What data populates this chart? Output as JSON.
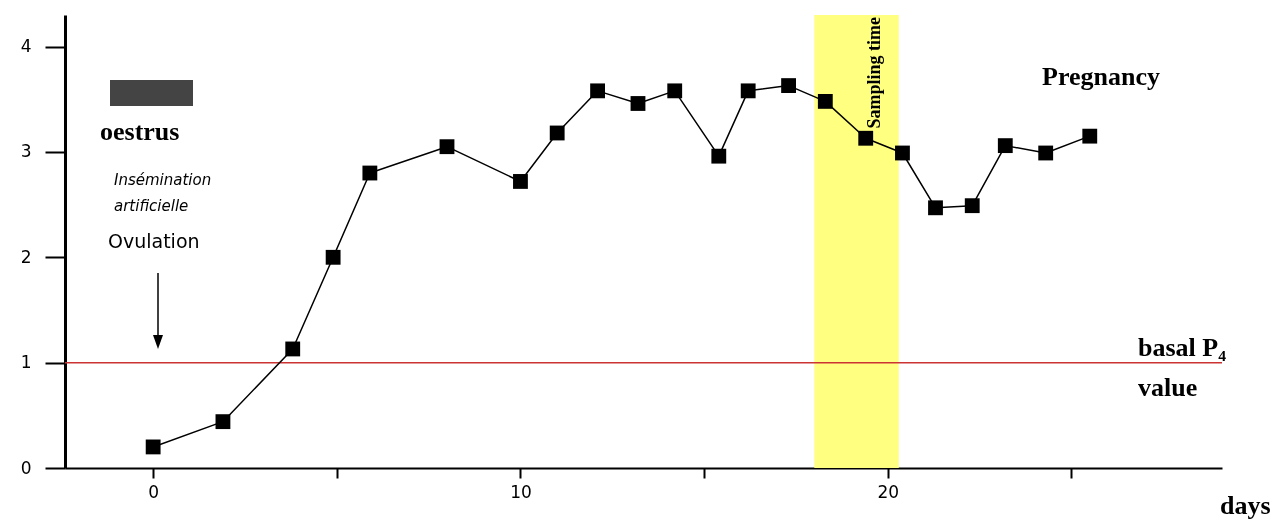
{
  "chart_data": {
    "type": "line",
    "xlabel": "days",
    "series": [
      {
        "color": "#000000",
        "x": [
          0,
          1.9,
          3.8,
          4.9,
          5.9,
          8.0,
          10.0,
          11.0,
          12.1,
          13.2,
          14.2,
          15.4,
          16.2,
          17.3,
          18.3,
          19.4,
          20.4,
          21.3,
          22.3,
          23.2,
          24.3,
          25.5
        ],
        "values": [
          0.2,
          0.44,
          1.13,
          2.0,
          2.8,
          3.05,
          2.72,
          3.18,
          3.58,
          3.46,
          3.58,
          2.96,
          3.58,
          3.63,
          3.48,
          3.13,
          2.99,
          2.47,
          2.49,
          3.06,
          2.99,
          3.15
        ]
      }
    ],
    "marker": "square",
    "line_style": "solid",
    "grid": false,
    "xlim": [
      -2.4,
      29.1
    ],
    "xticks": [
      0,
      {
        "value": 5,
        "label": null
      },
      10,
      {
        "value": 15,
        "label": null
      },
      20,
      {
        "value": 25,
        "label": null
      }
    ],
    "ylim": [
      0,
      4.3
    ],
    "yticks": [
      0,
      1,
      2,
      3,
      4
    ],
    "ref_lines": [
      {
        "axis": "y",
        "value": 1,
        "label": "basal P₄ value",
        "color": "#cc3333"
      }
    ],
    "bands": [
      {
        "axis": "x",
        "from": 18.0,
        "to": 20.3,
        "label": "Sampling time",
        "color": "#ffff80"
      }
    ],
    "annotations": [
      "Pregnancy",
      "oestrus",
      "Insémination artificielle",
      "Ovulation"
    ]
  }
}
